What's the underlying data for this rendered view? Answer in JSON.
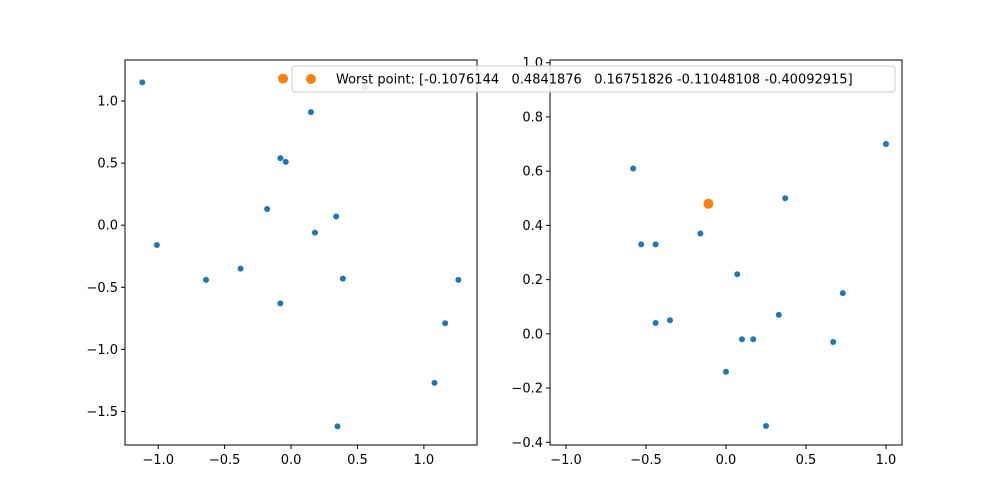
{
  "chart_data": [
    {
      "type": "scatter",
      "title": "",
      "xlabel": "",
      "ylabel": "",
      "xlim": [
        -1.25,
        1.4
      ],
      "ylim": [
        -1.77,
        1.33
      ],
      "xticks": [
        -1.0,
        -0.5,
        0.0,
        0.5,
        1.0
      ],
      "xtick_labels": [
        "−1.0",
        "−0.5",
        "0.0",
        "0.5",
        "1.0"
      ],
      "yticks": [
        -1.5,
        -1.0,
        -0.5,
        0.0,
        0.5,
        1.0
      ],
      "ytick_labels": [
        "−1.5",
        "−1.0",
        "−0.5",
        "0.0",
        "0.5",
        "1.0"
      ],
      "grid": false,
      "legend": {
        "placement": "upper-right",
        "entries": [
          {
            "label": "Worst point: [-0.1076144   0.4841876   0.16751826 -0.11048108 -0.40092915]",
            "color": "#ff7f0e"
          }
        ]
      },
      "series": [
        {
          "color": "#1f77b4",
          "marker": "small-dot",
          "points": [
            [
              -1.12,
              1.15
            ],
            [
              -1.01,
              -0.16
            ],
            [
              -0.64,
              -0.44
            ],
            [
              -0.38,
              -0.35
            ],
            [
              -0.18,
              0.13
            ],
            [
              -0.08,
              0.54
            ],
            [
              -0.04,
              0.51
            ],
            [
              -0.08,
              -0.63
            ],
            [
              0.15,
              0.91
            ],
            [
              0.18,
              -0.06
            ],
            [
              0.34,
              0.07
            ],
            [
              0.39,
              -0.43
            ],
            [
              0.35,
              -1.62
            ],
            [
              0.56,
              1.11
            ],
            [
              1.08,
              -1.27
            ],
            [
              1.16,
              -0.79
            ],
            [
              1.26,
              -0.44
            ]
          ]
        },
        {
          "color": "#ff7f0e",
          "marker": "large-dot",
          "points": [
            [
              -0.06,
              1.18
            ]
          ]
        }
      ]
    },
    {
      "type": "scatter",
      "title": "",
      "xlabel": "",
      "ylabel": "",
      "xlim": [
        -1.1,
        1.1
      ],
      "ylim": [
        -0.41,
        1.01
      ],
      "xticks": [
        -1.0,
        -0.5,
        0.0,
        0.5,
        1.0
      ],
      "xtick_labels": [
        "−1.0",
        "−0.5",
        "0.0",
        "0.5",
        "1.0"
      ],
      "yticks": [
        -0.4,
        -0.2,
        0.0,
        0.2,
        0.4,
        0.6,
        0.8,
        1.0
      ],
      "ytick_labels": [
        "−0.4",
        "−0.2",
        "0.0",
        "0.2",
        "0.4",
        "0.6",
        "0.8",
        "1.0"
      ],
      "grid": false,
      "series": [
        {
          "color": "#1f77b4",
          "marker": "small-dot",
          "points": [
            [
              -0.58,
              0.61
            ],
            [
              -0.53,
              0.33
            ],
            [
              -0.44,
              0.33
            ],
            [
              -0.44,
              0.04
            ],
            [
              -0.35,
              0.05
            ],
            [
              -0.16,
              0.37
            ],
            [
              0.07,
              0.22
            ],
            [
              0.0,
              -0.14
            ],
            [
              0.1,
              -0.02
            ],
            [
              0.17,
              -0.02
            ],
            [
              0.25,
              -0.34
            ],
            [
              0.33,
              0.07
            ],
            [
              0.37,
              0.5
            ],
            [
              0.67,
              -0.03
            ],
            [
              0.73,
              0.15
            ],
            [
              1.0,
              0.7
            ]
          ]
        },
        {
          "color": "#ff7f0e",
          "marker": "large-dot",
          "points": [
            [
              -0.11,
              0.48
            ]
          ]
        }
      ]
    }
  ]
}
